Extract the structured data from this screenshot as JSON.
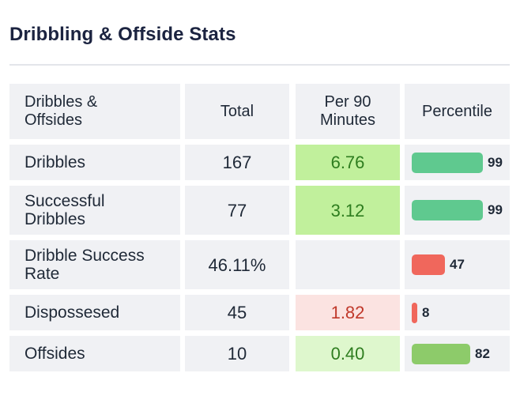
{
  "title": "Dribbling & Offside Stats",
  "headers": {
    "col1": "Dribbles & Offsides",
    "col2": "Total",
    "col3": "Per 90 Minutes",
    "col4": "Percentile"
  },
  "rows": [
    {
      "label": "Dribbles",
      "total": "167",
      "per90": "6.76",
      "percentile": 99,
      "percentile_label": "99"
    },
    {
      "label": "Successful Dribbles",
      "total": "77",
      "per90": "3.12",
      "percentile": 99,
      "percentile_label": "99"
    },
    {
      "label": "Dribble Success Rate",
      "total": "46.11%",
      "per90": "",
      "percentile": 47,
      "percentile_label": "47"
    },
    {
      "label": "Dispossesed",
      "total": "45",
      "per90": "1.82",
      "percentile": 8,
      "percentile_label": "8"
    },
    {
      "label": "Offsides",
      "total": "10",
      "per90": "0.40",
      "percentile": 82,
      "percentile_label": "82"
    }
  ],
  "colors": {
    "bar_high": "#5fc98f",
    "bar_mid": "#8dcb6a",
    "bar_low": "#f0675c",
    "per90_good_strong": "#c1f09c",
    "per90_good_light": "#def7cd",
    "per90_bad": "#fbe3e1"
  }
}
